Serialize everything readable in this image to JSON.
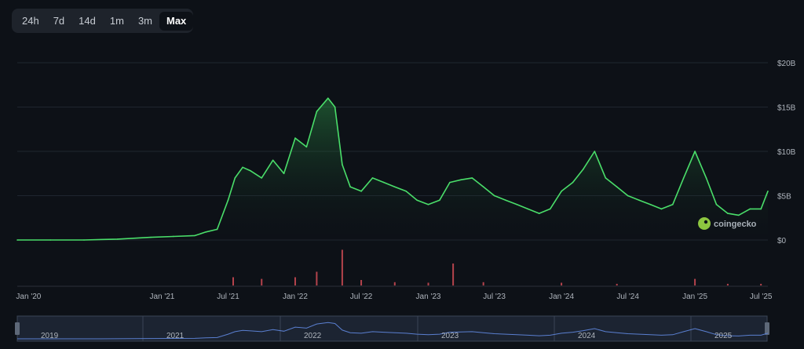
{
  "range_buttons": [
    {
      "label": "24h",
      "active": false
    },
    {
      "label": "7d",
      "active": false
    },
    {
      "label": "14d",
      "active": false
    },
    {
      "label": "1m",
      "active": false
    },
    {
      "label": "3m",
      "active": false
    },
    {
      "label": "Max",
      "active": true
    }
  ],
  "watermark": "coingecko",
  "colors": {
    "line": "#4ade6a",
    "volume": "#b4434c",
    "navigator_line": "#5a7fd0",
    "background": "#0d1117"
  },
  "chart_data": {
    "type": "area",
    "title": "",
    "xlabel": "",
    "ylabel": "",
    "y_ticks": [
      "$0",
      "$5B",
      "$10B",
      "$15B",
      "$20B"
    ],
    "y_tick_values": [
      0,
      5,
      10,
      15,
      20
    ],
    "ylim": [
      0,
      20
    ],
    "y_unit": "B USD",
    "x_ticks": [
      "Jan '20",
      "Jan '21",
      "Jul '21",
      "Jan '22",
      "Jul '22",
      "Jan '23",
      "Jul '23",
      "Jan '24",
      "Jul '24",
      "Jan '25",
      "Jul '25"
    ],
    "x_tick_dates": [
      "2020-01-01",
      "2021-01-01",
      "2021-07-01",
      "2022-01-01",
      "2022-07-01",
      "2023-01-01",
      "2023-07-01",
      "2024-01-01",
      "2024-07-01",
      "2025-01-01",
      "2025-07-01"
    ],
    "grid": true,
    "series": [
      {
        "x": [
          "2019-12-01",
          "2020-03-01",
          "2020-06-01",
          "2020-09-01",
          "2020-12-01",
          "2021-02-01",
          "2021-04-01",
          "2021-05-01",
          "2021-06-01",
          "2021-07-01",
          "2021-07-20",
          "2021-08-10",
          "2021-09-01",
          "2021-10-01",
          "2021-11-01",
          "2021-12-01",
          "2022-01-01",
          "2022-02-01",
          "2022-03-01",
          "2022-04-01",
          "2022-04-20",
          "2022-05-10",
          "2022-06-01",
          "2022-07-01",
          "2022-08-01",
          "2022-09-01",
          "2022-10-01",
          "2022-11-01",
          "2022-12-01",
          "2023-01-01",
          "2023-02-01",
          "2023-03-01",
          "2023-04-01",
          "2023-05-01",
          "2023-06-01",
          "2023-07-01",
          "2023-08-01",
          "2023-09-01",
          "2023-10-01",
          "2023-11-01",
          "2023-12-01",
          "2024-01-01",
          "2024-02-01",
          "2024-03-01",
          "2024-04-01",
          "2024-05-01",
          "2024-06-01",
          "2024-07-01",
          "2024-08-01",
          "2024-09-01",
          "2024-10-01",
          "2024-11-01",
          "2024-12-01",
          "2025-01-01",
          "2025-02-01",
          "2025-03-01",
          "2025-04-01",
          "2025-05-01",
          "2025-06-01",
          "2025-07-01",
          "2025-07-20"
        ],
        "y": [
          0,
          0,
          0,
          0.1,
          0.3,
          0.4,
          0.5,
          0.9,
          1.2,
          4.5,
          7.0,
          8.2,
          7.8,
          7.0,
          9.0,
          7.5,
          11.5,
          10.5,
          14.5,
          16.0,
          15.0,
          8.5,
          6.0,
          5.5,
          7.0,
          6.5,
          6.0,
          5.5,
          4.5,
          4.0,
          4.5,
          6.5,
          6.8,
          7.0,
          6.0,
          5.0,
          4.5,
          4.0,
          3.5,
          3.0,
          3.5,
          5.5,
          6.5,
          8.0,
          10.0,
          7.0,
          6.0,
          5.0,
          4.5,
          4.0,
          3.5,
          4.0,
          7.0,
          10.0,
          7.0,
          4.0,
          3.0,
          2.8,
          3.5,
          3.5,
          5.5
        ]
      }
    ],
    "volume": {
      "x": [
        "2021-07-15",
        "2021-10-01",
        "2022-01-01",
        "2022-03-01",
        "2022-05-10",
        "2022-07-01",
        "2022-10-01",
        "2023-01-01",
        "2023-03-10",
        "2023-06-01",
        "2024-01-01",
        "2024-06-01",
        "2025-01-01",
        "2025-04-01",
        "2025-07-01"
      ],
      "y": [
        1.5,
        1.2,
        1.5,
        2.5,
        6.5,
        1.0,
        0.6,
        0.5,
        4.0,
        0.6,
        0.5,
        0.3,
        1.2,
        0.3,
        0.3
      ]
    },
    "navigator": {
      "labels": [
        "2019",
        "2021",
        "2022",
        "2023",
        "2024",
        "2025"
      ]
    }
  }
}
